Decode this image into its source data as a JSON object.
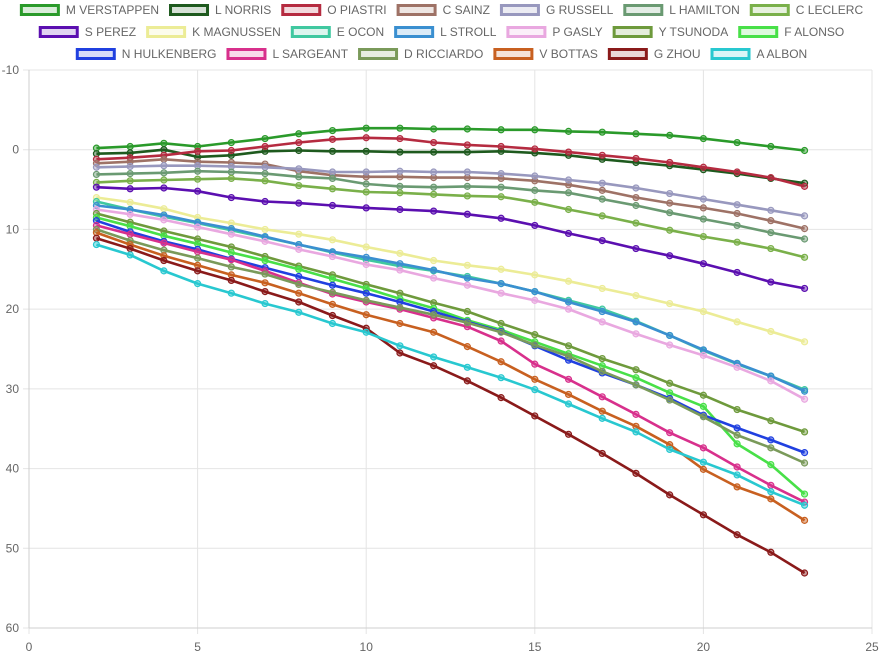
{
  "chart_data": {
    "type": "line",
    "x_range": [
      0,
      25
    ],
    "y_range": [
      -10,
      60
    ],
    "y_reversed": true,
    "x_ticks": [
      0,
      5,
      10,
      15,
      20,
      25
    ],
    "y_ticks": [
      -10,
      0,
      10,
      20,
      30,
      40,
      50,
      60
    ],
    "grid": true,
    "legend_position": "top",
    "x": [
      2,
      3,
      4,
      5,
      6,
      7,
      8,
      9,
      10,
      11,
      12,
      13,
      14,
      15,
      16,
      17,
      18,
      19,
      20,
      21,
      22,
      23
    ],
    "series": [
      {
        "name": "M VERSTAPPEN",
        "color": "#2a9a2a",
        "values": [
          -0.2,
          -0.4,
          -0.8,
          -0.4,
          -0.9,
          -1.4,
          -2.0,
          -2.4,
          -2.7,
          -2.7,
          -2.6,
          -2.6,
          -2.5,
          -2.5,
          -2.3,
          -2.2,
          -2.0,
          -1.8,
          -1.4,
          -0.9,
          -0.4,
          0.1
        ]
      },
      {
        "name": "L NORRIS",
        "color": "#1e5a1e",
        "values": [
          0.5,
          0.4,
          0.0,
          0.9,
          0.7,
          0.2,
          0.1,
          0.2,
          0.2,
          0.3,
          0.3,
          0.3,
          0.2,
          0.4,
          0.7,
          1.2,
          1.6,
          2.0,
          2.5,
          3.0,
          3.6,
          4.2
        ]
      },
      {
        "name": "O PIASTRI",
        "color": "#b52b40",
        "values": [
          1.2,
          1.0,
          0.7,
          0.2,
          0.1,
          -0.4,
          -0.9,
          -1.3,
          -1.5,
          -1.4,
          -0.9,
          -0.6,
          -0.4,
          -0.1,
          0.3,
          0.7,
          1.1,
          1.6,
          2.2,
          2.8,
          3.5,
          4.6
        ]
      },
      {
        "name": "C SAINZ",
        "color": "#9e7266",
        "values": [
          1.7,
          1.5,
          1.2,
          1.5,
          1.6,
          1.8,
          2.7,
          3.2,
          3.4,
          3.4,
          3.5,
          3.5,
          3.6,
          3.9,
          4.4,
          5.1,
          6.0,
          6.7,
          7.3,
          8.0,
          8.9,
          9.9
        ]
      },
      {
        "name": "G RUSSELL",
        "color": "#9898be",
        "values": [
          2.2,
          2.1,
          2.0,
          2.0,
          2.1,
          2.2,
          2.4,
          2.8,
          2.8,
          2.7,
          2.8,
          2.8,
          3.0,
          3.3,
          3.8,
          4.2,
          4.8,
          5.5,
          6.2,
          6.9,
          7.6,
          8.3
        ]
      },
      {
        "name": "L HAMILTON",
        "color": "#6a9a72",
        "values": [
          3.1,
          3.0,
          2.9,
          2.7,
          2.8,
          3.0,
          3.4,
          3.6,
          4.3,
          4.6,
          4.7,
          4.6,
          4.7,
          5.1,
          5.4,
          6.2,
          7.0,
          7.9,
          8.7,
          9.5,
          10.4,
          11.2
        ]
      },
      {
        "name": "C LECLERC",
        "color": "#7ab04a",
        "values": [
          4.1,
          3.9,
          3.8,
          3.7,
          3.6,
          3.9,
          4.5,
          4.9,
          5.3,
          5.4,
          5.6,
          5.8,
          5.9,
          6.6,
          7.5,
          8.3,
          9.2,
          10.1,
          10.9,
          11.6,
          12.4,
          13.5
        ]
      },
      {
        "name": "S PEREZ",
        "color": "#5b0fb0",
        "values": [
          4.7,
          4.9,
          4.8,
          5.2,
          6.0,
          6.5,
          6.7,
          7.0,
          7.3,
          7.5,
          7.7,
          8.1,
          8.6,
          9.5,
          10.5,
          11.4,
          12.4,
          13.3,
          14.3,
          15.4,
          16.6,
          17.4
        ]
      },
      {
        "name": "K MAGNUSSEN",
        "color": "#ecec96",
        "values": [
          6.0,
          6.6,
          7.4,
          8.5,
          9.2,
          10.0,
          10.6,
          11.3,
          12.2,
          13.0,
          13.9,
          14.5,
          15.0,
          15.7,
          16.5,
          17.4,
          18.3,
          19.3,
          20.3,
          21.6,
          22.8,
          24.1
        ]
      },
      {
        "name": "E OCON",
        "color": "#40c8a0",
        "values": [
          6.5,
          7.5,
          8.4,
          9.2,
          10.1,
          11.0,
          11.9,
          12.9,
          13.8,
          14.6,
          15.2,
          15.9,
          16.8,
          17.8,
          18.9,
          20.0,
          21.5,
          23.3,
          25.2,
          26.9,
          28.4,
          30.1
        ]
      },
      {
        "name": "L STROLL",
        "color": "#3a8fd0",
        "values": [
          7.0,
          7.5,
          8.2,
          9.1,
          9.9,
          10.9,
          11.9,
          12.8,
          13.5,
          14.3,
          15.1,
          16.1,
          16.8,
          17.8,
          19.1,
          20.3,
          21.6,
          23.3,
          25.1,
          26.8,
          28.4,
          30.3
        ]
      },
      {
        "name": "P GASLY",
        "color": "#e9a8e0",
        "values": [
          7.5,
          8.1,
          8.8,
          9.7,
          10.6,
          11.5,
          12.5,
          13.4,
          14.4,
          15.1,
          16.1,
          17.0,
          18.0,
          18.9,
          20.0,
          21.6,
          23.1,
          24.5,
          25.8,
          27.3,
          29.0,
          31.3
        ]
      },
      {
        "name": "Y TSUNODA",
        "color": "#6e9a3c",
        "values": [
          8.0,
          9.1,
          10.2,
          11.2,
          12.2,
          13.4,
          14.6,
          15.7,
          16.9,
          18.0,
          19.2,
          20.3,
          21.8,
          23.2,
          24.6,
          26.2,
          27.6,
          29.3,
          30.8,
          32.6,
          34.0,
          35.4
        ]
      },
      {
        "name": "F ALONSO",
        "color": "#48e048",
        "values": [
          8.5,
          9.6,
          10.8,
          11.8,
          12.9,
          13.9,
          15.0,
          16.2,
          17.4,
          18.7,
          19.9,
          21.4,
          22.6,
          24.1,
          25.6,
          27.1,
          28.6,
          30.5,
          32.2,
          36.9,
          39.5,
          43.2
        ]
      },
      {
        "name": "N HULKENBERG",
        "color": "#2040e0",
        "values": [
          8.9,
          10.3,
          11.5,
          12.5,
          13.7,
          14.8,
          15.9,
          17.0,
          18.0,
          19.1,
          20.3,
          21.6,
          22.8,
          24.6,
          26.4,
          28.0,
          29.5,
          31.2,
          33.3,
          34.9,
          36.4,
          38.0
        ]
      },
      {
        "name": "L SARGEANT",
        "color": "#d8308c",
        "values": [
          9.5,
          10.6,
          11.7,
          12.8,
          13.8,
          15.2,
          16.7,
          18.1,
          19.1,
          20.0,
          21.1,
          22.2,
          24.0,
          26.9,
          28.8,
          31.0,
          33.2,
          35.5,
          37.4,
          39.8,
          42.1,
          44.2
        ]
      },
      {
        "name": "D RICCIARDO",
        "color": "#7a9a5a",
        "values": [
          10.0,
          11.4,
          12.6,
          13.6,
          14.7,
          15.6,
          16.9,
          17.9,
          18.9,
          19.8,
          20.7,
          21.7,
          22.9,
          24.5,
          25.9,
          27.8,
          29.5,
          31.4,
          33.5,
          35.8,
          37.4,
          39.3
        ]
      },
      {
        "name": "V BOTTAS",
        "color": "#c86020",
        "values": [
          10.4,
          11.9,
          13.3,
          14.5,
          15.7,
          16.7,
          18.0,
          19.4,
          20.7,
          21.8,
          22.9,
          24.7,
          26.6,
          28.8,
          30.7,
          32.8,
          34.7,
          37.0,
          40.1,
          42.3,
          43.8,
          46.5
        ]
      },
      {
        "name": "G ZHOU",
        "color": "#8a1a1a",
        "values": [
          11.1,
          12.4,
          13.9,
          15.2,
          16.4,
          17.8,
          19.1,
          20.8,
          22.4,
          25.5,
          27.1,
          29.0,
          31.1,
          33.4,
          35.7,
          38.1,
          40.6,
          43.3,
          45.8,
          48.3,
          50.5,
          53.1
        ]
      },
      {
        "name": "A ALBON",
        "color": "#28c8d0",
        "values": [
          11.9,
          13.2,
          15.2,
          16.8,
          18.0,
          19.3,
          20.4,
          21.8,
          22.9,
          24.6,
          26.0,
          27.3,
          28.6,
          30.1,
          31.9,
          33.7,
          35.4,
          37.6,
          39.2,
          40.8,
          42.9,
          44.6
        ]
      }
    ]
  }
}
